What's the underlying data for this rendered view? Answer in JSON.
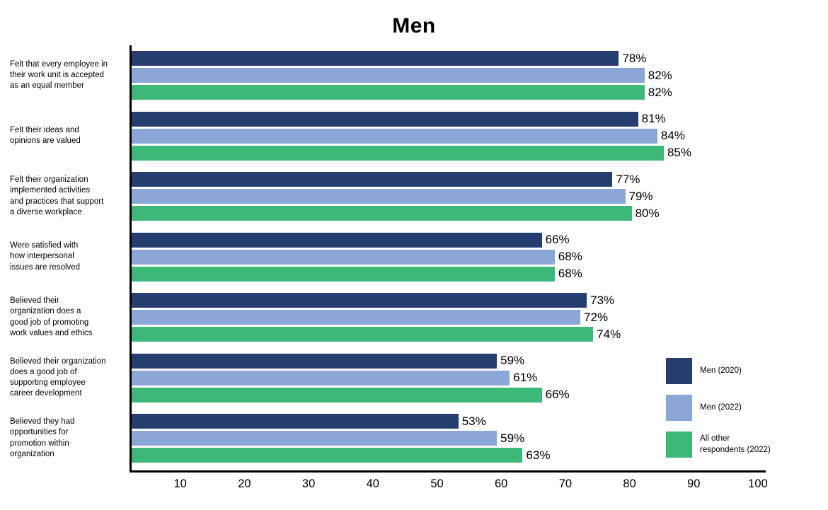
{
  "title": "Men",
  "chart_data": {
    "type": "bar",
    "orientation": "horizontal",
    "title": "Men",
    "xlabel": "",
    "ylabel": "",
    "xlim": [
      0,
      100
    ],
    "xticks": [
      10,
      20,
      30,
      40,
      50,
      60,
      70,
      80,
      90,
      100
    ],
    "grid": false,
    "legend_position": "bottom-right",
    "value_suffix": "%",
    "categories": [
      "Felt that every employee in\ntheir work unit is accepted\nas an equal member",
      "Felt their ideas and\nopinions are valued",
      "Felt their organization\nimplemented activities\nand practices that support\na diverse workplace",
      "Were satisfied with\nhow interpersonal\nissues are resolved",
      "Believed their\norganization does a\ngood job of promoting\nwork values and ethics",
      "Believed their organization\ndoes a good job of\nsupporting employee\ncareer development",
      "Believed they had\nopportunities for\npromotion within\norganization"
    ],
    "series": [
      {
        "name": "Men (2020)",
        "legend_label": "Men (2020)",
        "color": "#263d6f",
        "values": [
          78,
          81,
          77,
          66,
          73,
          59,
          53
        ]
      },
      {
        "name": "Men (2022)",
        "legend_label": "Men (2022)",
        "color": "#8ba7d7",
        "values": [
          82,
          84,
          79,
          68,
          72,
          61,
          59
        ]
      },
      {
        "name": "All other respondents (2022)",
        "legend_label": "All other\nrespondents (2022)",
        "color": "#3cb878",
        "values": [
          82,
          85,
          80,
          68,
          74,
          66,
          63
        ]
      }
    ]
  }
}
